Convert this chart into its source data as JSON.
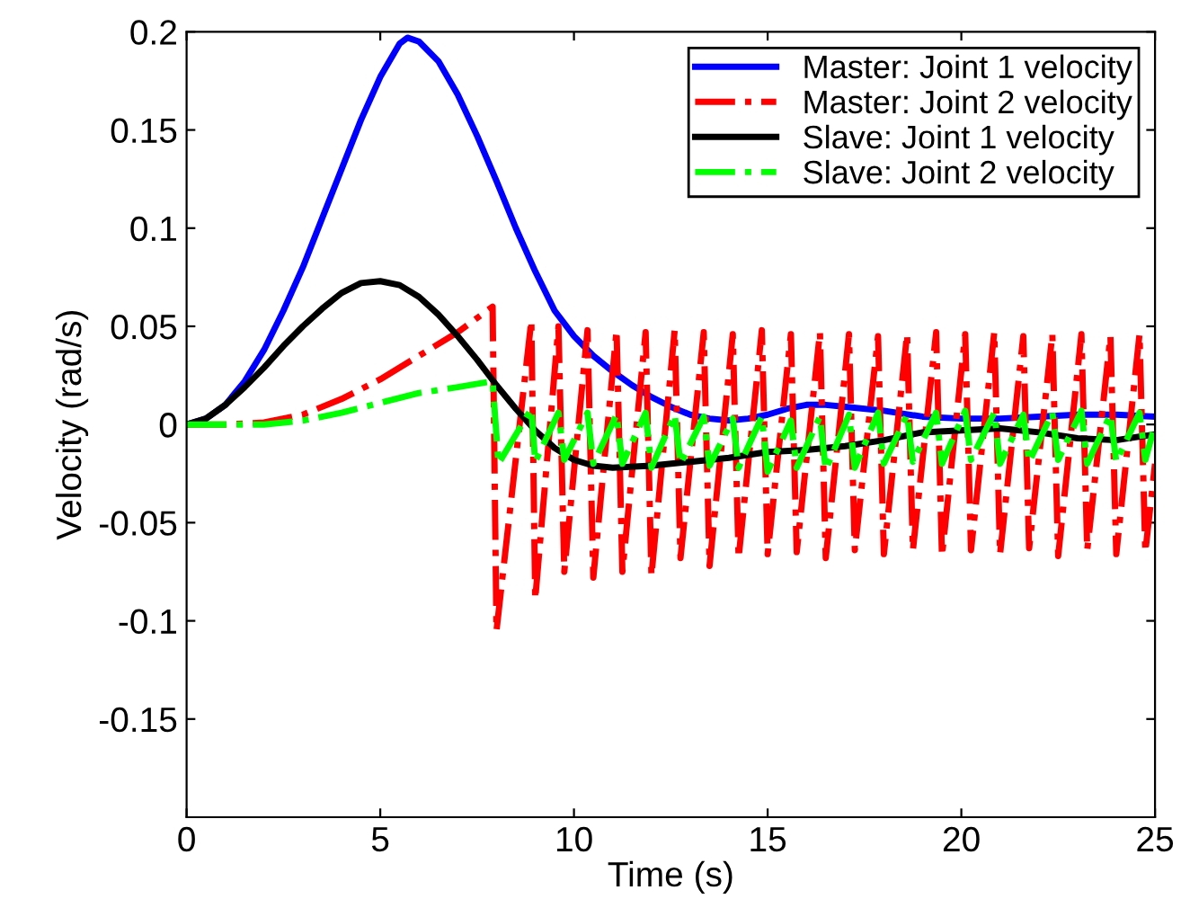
{
  "chart_data": {
    "type": "line",
    "xlabel": "Time (s)",
    "ylabel": "Velocity (rad/s)",
    "xlim": [
      0,
      25
    ],
    "xticks": [
      0,
      5,
      10,
      15,
      20,
      25
    ],
    "ylim": [
      -0.2,
      0.2
    ],
    "yticks": [
      -0.15,
      -0.1,
      -0.05,
      0,
      0.05,
      0.1,
      0.15,
      0.2
    ],
    "grid": false,
    "legend": "top right",
    "series": [
      {
        "name": "Master: Joint 1 velocity",
        "color": "#0000ff",
        "line_style": "solid",
        "x": [
          0,
          0.5,
          1,
          1.5,
          2,
          2.5,
          3,
          3.5,
          4,
          4.5,
          5,
          5.5,
          5.7,
          6,
          6.5,
          7,
          7.5,
          8,
          8.5,
          9,
          9.5,
          10,
          10.5,
          11,
          11.5,
          12,
          12.5,
          13,
          13.5,
          14,
          14.5,
          15,
          15.5,
          16,
          16.5,
          17,
          18,
          19,
          20,
          21,
          22,
          23,
          24,
          25
        ],
        "values": [
          0,
          0.003,
          0.01,
          0.022,
          0.038,
          0.058,
          0.08,
          0.105,
          0.13,
          0.155,
          0.177,
          0.194,
          0.197,
          0.195,
          0.185,
          0.168,
          0.147,
          0.124,
          0.1,
          0.078,
          0.058,
          0.045,
          0.035,
          0.027,
          0.02,
          0.014,
          0.009,
          0.005,
          0.003,
          0.002,
          0.003,
          0.005,
          0.008,
          0.01,
          0.01,
          0.009,
          0.007,
          0.004,
          0.003,
          0.003,
          0.004,
          0.005,
          0.005,
          0.004
        ]
      },
      {
        "name": "Master: Joint 2 velocity",
        "color": "#ff0000",
        "line_style": "dashdot",
        "x": [
          0,
          1,
          2,
          3,
          4,
          5,
          6,
          7,
          7.9,
          8.0,
          8.9,
          9.0,
          9.6,
          9.75,
          10.35,
          10.5,
          11.1,
          11.25,
          11.85,
          12.0,
          12.6,
          12.75,
          13.35,
          13.5,
          14.1,
          14.25,
          14.85,
          15.0,
          15.6,
          15.75,
          16.35,
          16.5,
          17.1,
          17.25,
          17.85,
          18.0,
          18.6,
          18.75,
          19.35,
          19.5,
          20.1,
          20.25,
          20.85,
          21.0,
          21.6,
          21.75,
          22.35,
          22.5,
          23.1,
          23.25,
          23.85,
          24.0,
          24.6,
          24.75,
          25
        ],
        "values": [
          0,
          0,
          0.001,
          0.005,
          0.013,
          0.023,
          0.035,
          0.047,
          0.06,
          -0.105,
          0.053,
          -0.089,
          0.05,
          -0.075,
          0.048,
          -0.078,
          0.048,
          -0.075,
          0.047,
          -0.077,
          0.048,
          -0.068,
          0.047,
          -0.072,
          0.046,
          -0.068,
          0.048,
          -0.066,
          0.046,
          -0.065,
          0.047,
          -0.068,
          0.046,
          -0.064,
          0.045,
          -0.066,
          0.046,
          -0.064,
          0.047,
          -0.067,
          0.046,
          -0.064,
          0.047,
          -0.066,
          0.045,
          -0.063,
          0.046,
          -0.067,
          0.046,
          -0.064,
          0.045,
          -0.066,
          0.046,
          -0.065,
          -0.02
        ]
      },
      {
        "name": "Slave: Joint 1 velocity",
        "color": "#000000",
        "line_style": "solid",
        "x": [
          0,
          0.5,
          1,
          1.5,
          2,
          2.5,
          3,
          3.5,
          4,
          4.5,
          5,
          5.5,
          6,
          6.5,
          7,
          7.5,
          8,
          8.5,
          9,
          9.5,
          10,
          10.5,
          11,
          12,
          13,
          14,
          15,
          16,
          17,
          18,
          19,
          20,
          21,
          22,
          23,
          24,
          25
        ],
        "values": [
          0,
          0.003,
          0.01,
          0.019,
          0.029,
          0.04,
          0.05,
          0.059,
          0.067,
          0.072,
          0.073,
          0.071,
          0.065,
          0.056,
          0.045,
          0.033,
          0.02,
          0.008,
          -0.003,
          -0.012,
          -0.018,
          -0.021,
          -0.022,
          -0.021,
          -0.019,
          -0.017,
          -0.014,
          -0.013,
          -0.011,
          -0.008,
          -0.004,
          -0.003,
          -0.002,
          -0.004,
          -0.007,
          -0.008,
          -0.005
        ]
      },
      {
        "name": "Slave: Joint 2 velocity",
        "color": "#00ff00",
        "line_style": "dashdot",
        "x": [
          0,
          1,
          2,
          3,
          4,
          5,
          6,
          7,
          7.9,
          8.05,
          8.9,
          9.0,
          9.6,
          9.75,
          10.35,
          10.5,
          11.1,
          11.25,
          11.85,
          12.0,
          12.6,
          12.75,
          13.35,
          13.5,
          14.1,
          14.25,
          14.85,
          15.0,
          15.6,
          15.75,
          16.35,
          16.5,
          17.1,
          17.25,
          17.85,
          18.0,
          18.6,
          18.75,
          19.35,
          19.5,
          20.1,
          20.25,
          20.85,
          21.0,
          21.6,
          21.75,
          22.35,
          22.5,
          23.1,
          23.25,
          23.85,
          24.0,
          24.6,
          24.75,
          25
        ],
        "values": [
          0,
          0,
          0,
          0.002,
          0.006,
          0.011,
          0.016,
          0.019,
          0.022,
          -0.02,
          0.008,
          -0.019,
          0.006,
          -0.018,
          0.006,
          -0.02,
          0.005,
          -0.02,
          0.006,
          -0.022,
          0.005,
          -0.02,
          0.004,
          -0.021,
          0.003,
          -0.022,
          0.004,
          -0.024,
          0.002,
          -0.022,
          0.004,
          -0.023,
          0.005,
          -0.022,
          0.006,
          -0.02,
          0.005,
          -0.019,
          0.006,
          -0.02,
          0.007,
          -0.018,
          0.006,
          -0.02,
          0.005,
          -0.019,
          0.006,
          -0.018,
          0.007,
          -0.02,
          0.005,
          -0.019,
          0.006,
          -0.018,
          0.0
        ]
      }
    ]
  }
}
